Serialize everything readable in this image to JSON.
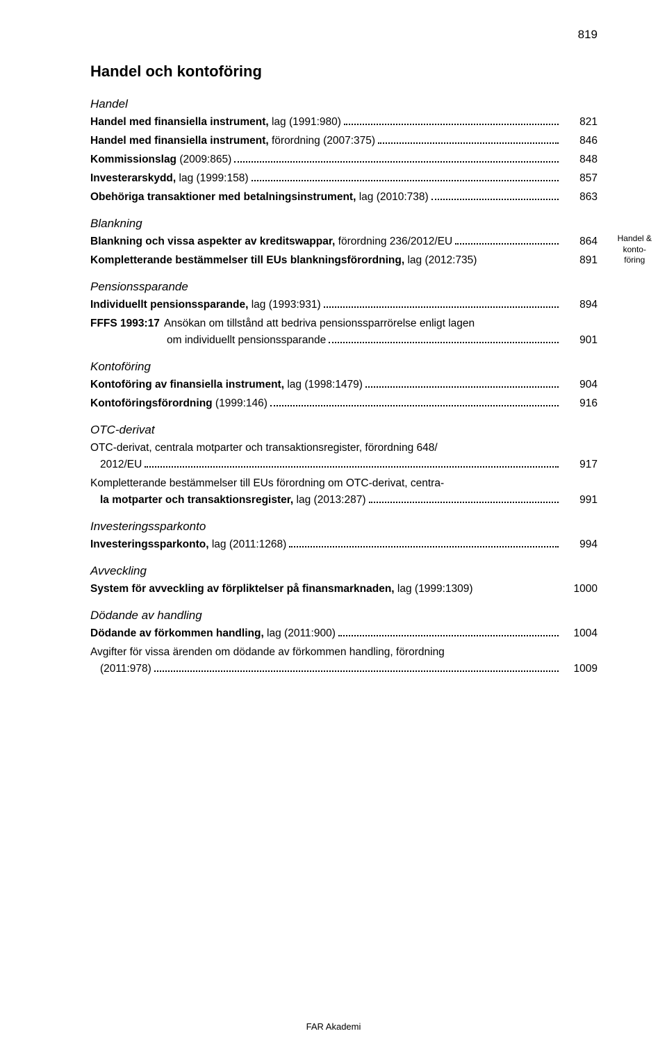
{
  "pageNumber": "819",
  "heading": "Handel och kontoföring",
  "marginLabel": {
    "line1": "Handel &",
    "line2": "konto-",
    "line3": "föring"
  },
  "footer": "FAR Akademi",
  "sections": [
    {
      "title": "Handel",
      "entries": [
        {
          "type": "dotted",
          "bold": "Handel med finansiella instrument,",
          "rest": " lag (1991:980)",
          "page": "821"
        },
        {
          "type": "dotted",
          "bold": "Handel med finansiella instrument,",
          "rest": " förordning (2007:375)",
          "page": "846"
        },
        {
          "type": "dotted",
          "bold": "Kommissionslag",
          "rest": " (2009:865)",
          "page": "848"
        },
        {
          "type": "dotted",
          "bold": "Investerarskydd,",
          "rest": " lag (1999:158)",
          "page": "857"
        },
        {
          "type": "dotted",
          "bold": "Obehöriga transaktioner med betalningsinstrument,",
          "rest": " lag (2010:738)",
          "page": "863"
        }
      ]
    },
    {
      "title": "Blankning",
      "entries": [
        {
          "type": "dotted",
          "bold": "Blankning och vissa aspekter av kreditswappar,",
          "rest": " förordning 236/2012/EU",
          "page": "864"
        },
        {
          "type": "nodots",
          "bold": "Kompletterande bestämmelser till EUs blankningsförordning,",
          "rest": " lag (2012:735)",
          "page": "891"
        }
      ]
    },
    {
      "title": "Pensionssparande",
      "entries": [
        {
          "type": "dotted",
          "bold": "Individuellt pensionssparande,",
          "rest": " lag (1993:931)",
          "page": "894"
        },
        {
          "type": "ffs",
          "label": "FFFS 1993:17",
          "line1": "Ansökan om tillstånd att bedriva pensionssparrörelse enligt lagen",
          "line2": "om individuellt pensionssparande",
          "page": "901"
        }
      ]
    },
    {
      "title": "Kontoföring",
      "entries": [
        {
          "type": "dotted",
          "bold": "Kontoföring av finansiella instrument,",
          "rest": " lag (1998:1479)",
          "page": "904"
        },
        {
          "type": "dotted",
          "bold": "Kontoföringsförordning",
          "rest": " (1999:146)",
          "page": "916"
        }
      ]
    },
    {
      "title": "OTC-derivat",
      "entries": [
        {
          "type": "multiline",
          "line1Bold": "OTC-derivat, centrala motparter och transaktionsregister,",
          "line1Rest": " förordning 648/",
          "line2": "2012/EU",
          "page": "917"
        },
        {
          "type": "multiline",
          "line1Bold": "Kompletterande bestämmelser till EUs förordning om OTC-derivat, centra-",
          "line1Rest": "",
          "line2Bold": "la motparter och transaktionsregister,",
          "line2Rest": " lag (2013:287)",
          "page": "991"
        }
      ]
    },
    {
      "title": "Investeringssparkonto",
      "entries": [
        {
          "type": "dotted",
          "bold": "Investeringssparkonto,",
          "rest": " lag (2011:1268)",
          "page": "994"
        }
      ]
    },
    {
      "title": "Avveckling",
      "entries": [
        {
          "type": "nodots",
          "bold": "System för avveckling av förpliktelser på finansmarknaden,",
          "rest": " lag (1999:1309)",
          "page": "1000"
        }
      ]
    },
    {
      "title": "Dödande av handling",
      "entries": [
        {
          "type": "dotted",
          "bold": "Dödande av förkommen handling,",
          "rest": " lag (2011:900)",
          "page": "1004"
        },
        {
          "type": "multiline",
          "line1Bold": "Avgifter för vissa ärenden om dödande av förkommen handling,",
          "line1Rest": " förordning",
          "line2": "(2011:978)",
          "page": "1009"
        }
      ]
    }
  ]
}
